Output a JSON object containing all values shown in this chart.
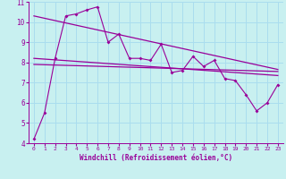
{
  "xlabel": "Windchill (Refroidissement éolien,°C)",
  "bg_color": "#c8f0f0",
  "line_color": "#990099",
  "grid_color": "#aaddee",
  "xlim": [
    -0.5,
    23.5
  ],
  "ylim": [
    4,
    11
  ],
  "xticks": [
    0,
    1,
    2,
    3,
    4,
    5,
    6,
    7,
    8,
    9,
    10,
    11,
    12,
    13,
    14,
    15,
    16,
    17,
    18,
    19,
    20,
    21,
    22,
    23
  ],
  "yticks": [
    4,
    5,
    6,
    7,
    8,
    9,
    10,
    11
  ],
  "series1_x": [
    0,
    1,
    2,
    3,
    4,
    5,
    6,
    7,
    8,
    9,
    10,
    11,
    12,
    13,
    14,
    15,
    16,
    17,
    18,
    19,
    20,
    21,
    22,
    23
  ],
  "series1_y": [
    4.2,
    5.5,
    8.2,
    10.3,
    10.4,
    10.6,
    10.75,
    9.0,
    9.4,
    8.2,
    8.2,
    8.1,
    8.9,
    7.5,
    7.6,
    8.3,
    7.8,
    8.1,
    7.2,
    7.1,
    6.4,
    5.6,
    6.0,
    6.9
  ],
  "trend1_x": [
    0,
    23
  ],
  "trend1_y": [
    10.3,
    7.65
  ],
  "trend2_x": [
    0,
    23
  ],
  "trend2_y": [
    8.2,
    7.35
  ],
  "trend3_x": [
    0,
    23
  ],
  "trend3_y": [
    7.9,
    7.55
  ]
}
